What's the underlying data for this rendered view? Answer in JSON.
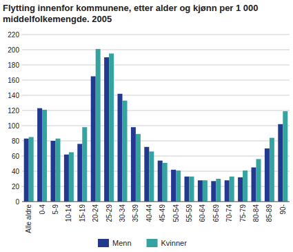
{
  "chart_data": {
    "type": "bar",
    "title": "Flytting innenfor kommunene, etter alder og kjønn per 1 000 middelfolkemengde. 2005",
    "categories": [
      "Alle aldre",
      "0-4",
      "5-9",
      "10-14",
      "15-19",
      "20-24",
      "25-29",
      "30-34",
      "35-39",
      "40-44",
      "45-49",
      "50-54",
      "55-59",
      "60-64",
      "65-69",
      "70-74",
      "75-79",
      "80-84",
      "85-89",
      "90-"
    ],
    "series": [
      {
        "name": "Menn",
        "color": "#22398f",
        "values": [
          83,
          123,
          80,
          62,
          76,
          165,
          190,
          142,
          98,
          72,
          54,
          42,
          33,
          28,
          27,
          28,
          32,
          45,
          70,
          102
        ]
      },
      {
        "name": "Kvinner",
        "color": "#35a39f",
        "values": [
          85,
          121,
          83,
          65,
          98,
          201,
          195,
          133,
          89,
          66,
          51,
          41,
          33,
          28,
          30,
          33,
          41,
          56,
          84,
          119
        ]
      }
    ],
    "ylim": [
      0,
      220
    ],
    "yticks": [
      0,
      20,
      40,
      60,
      80,
      100,
      120,
      140,
      160,
      180,
      200,
      220
    ],
    "grid": true,
    "legend": "bottom"
  }
}
